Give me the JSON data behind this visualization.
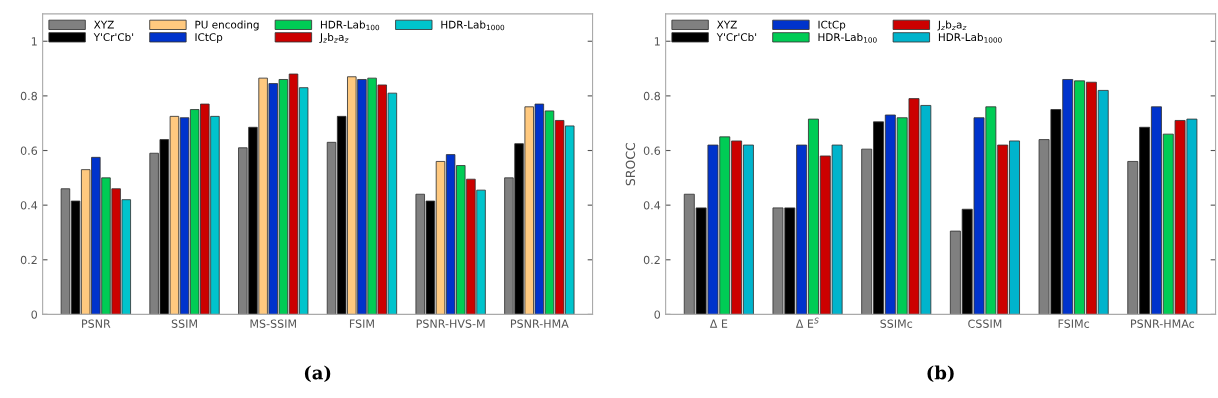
{
  "chart_data": [
    {
      "type": "bar",
      "title": "(a)",
      "categories": [
        "PSNR",
        "SSIM",
        "MS-SSIM",
        "FSIM",
        "PSNR-HVS-M",
        "PSNR-HMA"
      ],
      "ylim": [
        0,
        1.1
      ],
      "yticks": [
        0,
        {
          "value": 0.2,
          "label": "0.2"
        },
        {
          "value": 0.4,
          "label": "0.4"
        },
        {
          "value": 0.6,
          "label": "0.6"
        },
        {
          "value": 0.8,
          "label": "0.8"
        },
        1
      ],
      "grid": false,
      "legend": "top",
      "series": [
        {
          "name": "XYZ",
          "color": "#808080",
          "values": [
            0.46,
            0.59,
            0.61,
            0.63,
            0.44,
            0.5
          ]
        },
        {
          "name": "Y'Cr'Cb'",
          "color": "#000000",
          "values": [
            0.415,
            0.64,
            0.685,
            0.725,
            0.415,
            0.625
          ]
        },
        {
          "name": "PU encoding",
          "color": "#ffc97f",
          "values": [
            0.53,
            0.725,
            0.865,
            0.87,
            0.56,
            0.76
          ]
        },
        {
          "name": "ICtCp",
          "color": "#0033cc",
          "values": [
            0.575,
            0.72,
            0.845,
            0.86,
            0.585,
            0.77
          ]
        },
        {
          "name": "HDR-Lab$_{100}$",
          "color": "#00cc55",
          "values": [
            0.5,
            0.75,
            0.86,
            0.865,
            0.545,
            0.745
          ]
        },
        {
          "name": "J$_{z}$b$_{z}$a$_{z}$",
          "color": "#cc0000",
          "values": [
            0.46,
            0.77,
            0.88,
            0.84,
            0.495,
            0.71
          ]
        },
        {
          "name": "HDR-Lab$_{1000}$",
          "color": "#00c4cc",
          "values": [
            0.42,
            0.725,
            0.83,
            0.81,
            0.455,
            0.69
          ]
        }
      ]
    },
    {
      "type": "bar",
      "title": "(b)",
      "ylabel": "SROCC",
      "categories": [
        "Δ E",
        "Δ E$^{S}$",
        "SSIMc",
        "CSSIM",
        "FSIMc",
        "PSNR-HMAc"
      ],
      "ylim": [
        0,
        1.1
      ],
      "yticks": [
        0,
        {
          "value": 0.2,
          "label": "0.2"
        },
        {
          "value": 0.4,
          "label": "0.4"
        },
        {
          "value": 0.6,
          "label": "0.6"
        },
        {
          "value": 0.8,
          "label": "0.8"
        },
        1
      ],
      "grid": false,
      "legend": "top",
      "series": [
        {
          "name": "XYZ",
          "color": "#808080",
          "values": [
            0.44,
            0.39,
            0.605,
            0.305,
            0.64,
            0.56
          ]
        },
        {
          "name": "Y'Cr'Cb'",
          "color": "#000000",
          "values": [
            0.39,
            0.39,
            0.705,
            0.385,
            0.75,
            0.685
          ]
        },
        {
          "name": "ICtCp",
          "color": "#0033cc",
          "values": [
            0.62,
            0.62,
            0.73,
            0.72,
            0.86,
            0.76
          ]
        },
        {
          "name": "HDR-Lab$_{100}$",
          "color": "#00cc55",
          "values": [
            0.65,
            0.715,
            0.72,
            0.76,
            0.855,
            0.66
          ]
        },
        {
          "name": "J$_{z}$b$_{z}$a$_{z}$",
          "color": "#cc0000",
          "values": [
            0.635,
            0.58,
            0.79,
            0.62,
            0.85,
            0.71
          ]
        },
        {
          "name": "HDR-Lab$_{1000}$",
          "color": "#00b4cc",
          "values": [
            0.62,
            0.62,
            0.765,
            0.635,
            0.82,
            0.715
          ]
        }
      ]
    }
  ]
}
